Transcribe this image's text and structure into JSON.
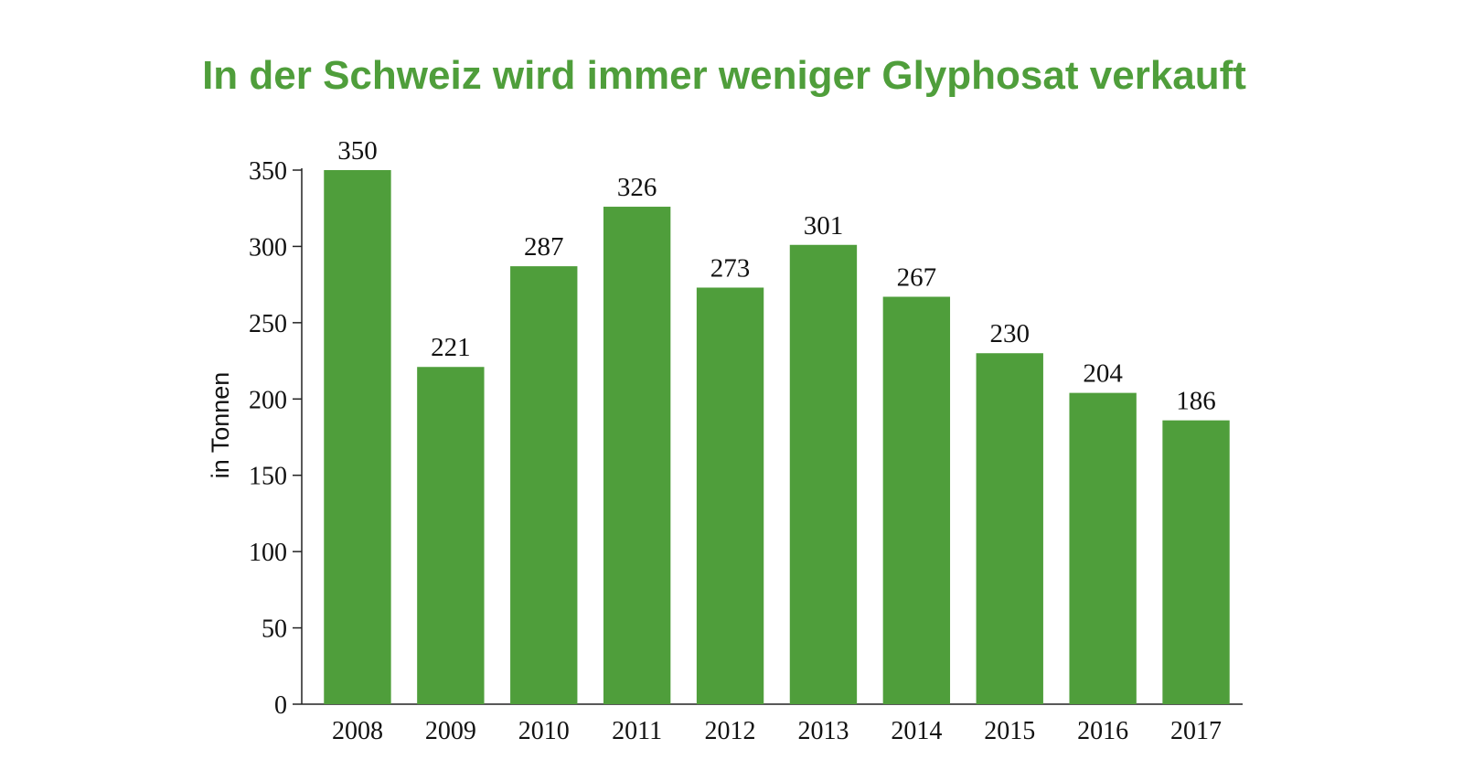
{
  "chart_data": {
    "type": "bar",
    "title": "In der Schweiz wird immer weniger Glyphosat verkauft",
    "ylabel": "in Tonnen",
    "xlabel": "",
    "categories": [
      "2008",
      "2009",
      "2010",
      "2011",
      "2012",
      "2013",
      "2014",
      "2015",
      "2016",
      "2017"
    ],
    "values": [
      350,
      221,
      287,
      326,
      273,
      301,
      267,
      230,
      204,
      186
    ],
    "ylim": [
      0,
      350
    ],
    "yticks": [
      0,
      50,
      100,
      150,
      200,
      250,
      300,
      350
    ],
    "grid": false,
    "data_labels": true,
    "colors": {
      "bar": "#4f9e3b",
      "title": "#4f9e3b",
      "axis": "#222222"
    }
  }
}
